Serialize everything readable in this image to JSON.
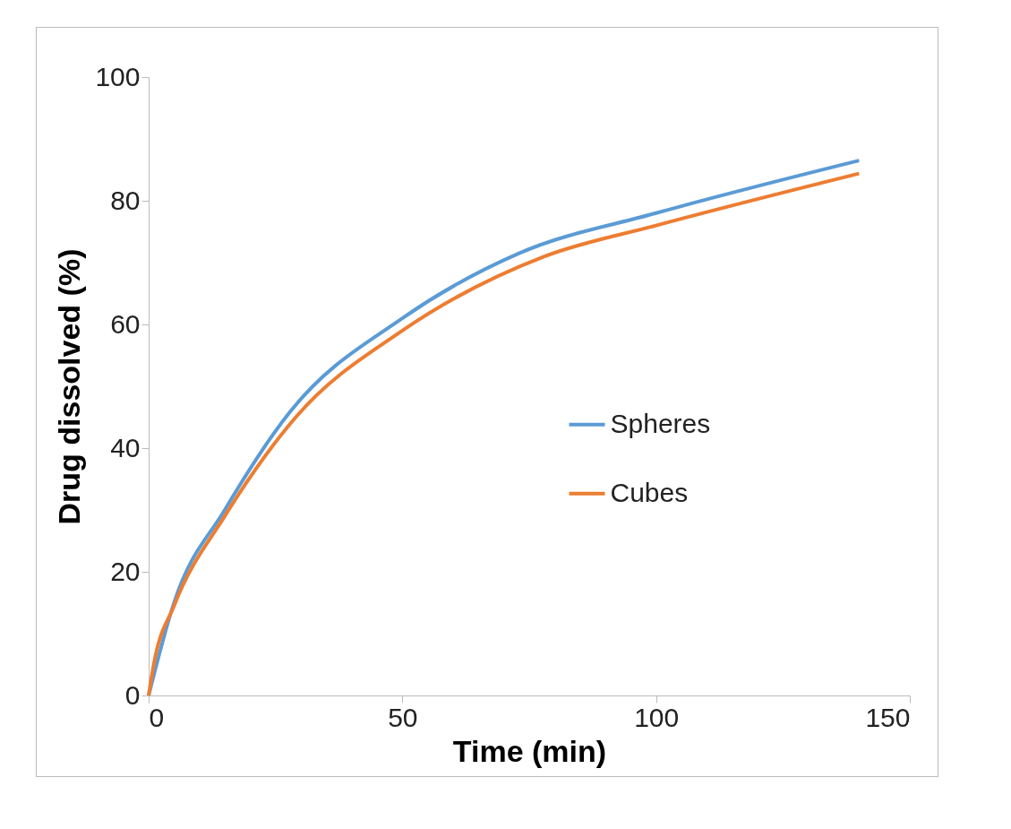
{
  "chart_data": {
    "type": "line",
    "xlabel": "Time (min)",
    "ylabel": "Drug dissolved (%)",
    "xlim": [
      0,
      150
    ],
    "xticks": [
      0,
      50,
      100,
      150
    ],
    "ylim": [
      0,
      100
    ],
    "yticks": [
      0,
      20,
      40,
      60,
      80,
      100
    ],
    "grid": false,
    "legend": "right",
    "marker": "none",
    "line_style": "solid",
    "series": [
      {
        "name": "Spheres",
        "color": "#5b9bd5",
        "x": [
          0,
          5,
          15,
          28,
          50,
          73,
          100,
          140
        ],
        "values": [
          0,
          15,
          30,
          46,
          61,
          71.5,
          78,
          86.5
        ]
      },
      {
        "name": "Cubes",
        "color": "#ed7d31",
        "x": [
          0,
          1,
          5,
          15,
          29,
          50,
          78,
          100,
          140
        ],
        "values": [
          0,
          5,
          14.5,
          29,
          45,
          59,
          71,
          76,
          84.4
        ]
      }
    ]
  }
}
